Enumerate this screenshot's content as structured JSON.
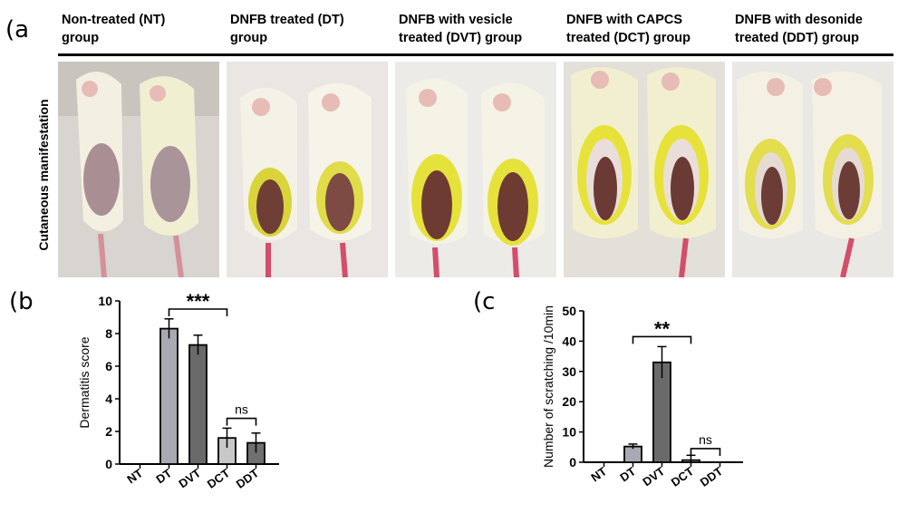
{
  "panel_a": {
    "label": "a",
    "row_label": "Cutaneous manifestation",
    "groups": [
      "Non-treated (NT)\ngroup",
      "DNFB treated (DT)\ngroup",
      "DNFB with vesicle\ntreated (DVT) group",
      "DNFB with CAPCS\ntreated (DCT) group",
      "DNFB with desonide\ntreated (DDT) group"
    ]
  },
  "panel_b": {
    "label": "b"
  },
  "panel_c": {
    "label": "c"
  },
  "colors": {
    "NT": "#b9b9b9",
    "DT": "#a9a9b4",
    "DVT": "#6a6a6a",
    "DCT": "#c8c8c8",
    "DDT": "#707070"
  },
  "chart_data": [
    {
      "type": "bar",
      "panel": "b",
      "ylabel": "Dermatitis score",
      "xlabel": "",
      "categories": [
        "NT",
        "DT",
        "DVT",
        "DCT",
        "DDT"
      ],
      "values": [
        0,
        8.3,
        7.3,
        1.6,
        1.3
      ],
      "errors": [
        0,
        0.6,
        0.6,
        0.6,
        0.6
      ],
      "ylim": [
        0,
        10
      ],
      "yticks": [
        0,
        2,
        4,
        6,
        8,
        10
      ],
      "significance": [
        {
          "from": "DT",
          "to": "DCT",
          "label": "***",
          "y": 9.5
        },
        {
          "from": "DCT",
          "to": "DDT",
          "label": "ns",
          "y": 2.8
        }
      ]
    },
    {
      "type": "bar",
      "panel": "c",
      "ylabel": "Number of scratching /10min",
      "xlabel": "",
      "categories": [
        "NT",
        "DT",
        "DVT",
        "DCT",
        "DDT"
      ],
      "values": [
        0,
        5.2,
        33,
        0.7,
        0
      ],
      "errors": [
        0,
        0.8,
        5.2,
        1.6,
        0
      ],
      "ylim": [
        0,
        50
      ],
      "yticks": [
        0,
        10,
        20,
        30,
        40,
        50
      ],
      "significance": [
        {
          "from": "DT",
          "to": "DCT",
          "label": "**",
          "y": 41.5
        },
        {
          "from": "DCT",
          "to": "DDT",
          "label": "ns",
          "y": 4.5
        }
      ]
    }
  ]
}
